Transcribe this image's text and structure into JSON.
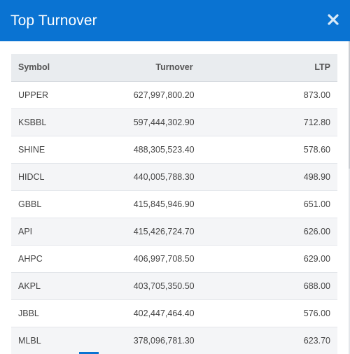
{
  "modal": {
    "title": "Top Turnover",
    "close_icon": "close-icon",
    "header_color": "#0a73d2"
  },
  "table": {
    "columns": {
      "symbol": "Symbol",
      "turnover": "Turnover",
      "ltp": "LTP"
    },
    "rows": [
      {
        "symbol": "UPPER",
        "turnover": "627,997,800.20",
        "ltp": "873.00"
      },
      {
        "symbol": "KSBBL",
        "turnover": "597,444,302.90",
        "ltp": "712.80"
      },
      {
        "symbol": "SHINE",
        "turnover": "488,305,523.40",
        "ltp": "578.60"
      },
      {
        "symbol": "HIDCL",
        "turnover": "440,005,788.30",
        "ltp": "498.90"
      },
      {
        "symbol": "GBBL",
        "turnover": "415,845,946.90",
        "ltp": "651.00"
      },
      {
        "symbol": "API",
        "turnover": "415,426,724.70",
        "ltp": "626.00"
      },
      {
        "symbol": "AHPC",
        "turnover": "406,997,708.50",
        "ltp": "629.00"
      },
      {
        "symbol": "AKPL",
        "turnover": "403,705,350.50",
        "ltp": "688.00"
      },
      {
        "symbol": "JBBL",
        "turnover": "402,447,464.40",
        "ltp": "576.00"
      },
      {
        "symbol": "MLBL",
        "turnover": "378,096,781.30",
        "ltp": "623.70"
      }
    ]
  }
}
